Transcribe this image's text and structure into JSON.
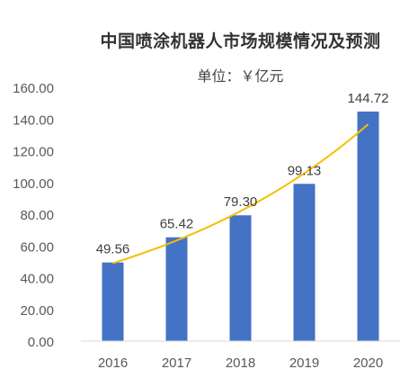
{
  "chart_data": {
    "type": "bar",
    "title": "中国喷涂机器人市场规模情况及预测",
    "subtitle": "单位：￥亿元",
    "categories": [
      "2016",
      "2017",
      "2018",
      "2019",
      "2020"
    ],
    "values": [
      49.56,
      65.42,
      79.3,
      99.13,
      144.72
    ],
    "data_labels": [
      "49.56",
      "65.42",
      "79.30",
      "99.13",
      "144.72"
    ],
    "ylim": [
      0,
      160
    ],
    "yticks": [
      "0.00",
      "20.00",
      "40.00",
      "60.00",
      "80.00",
      "100.00",
      "120.00",
      "140.00",
      "160.00"
    ],
    "trendline": {
      "type": "exponential",
      "color": "#F5BE00"
    },
    "grid": false,
    "colors": {
      "bar": "#4472C4",
      "trend": "#F5BE00",
      "axis": "#D9D9D9",
      "text": "#595959"
    }
  }
}
